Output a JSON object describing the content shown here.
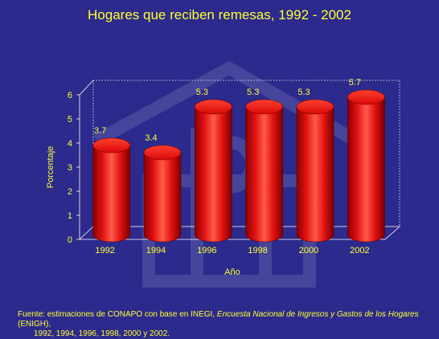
{
  "colors": {
    "background": "#2c2a8c",
    "text": "#ffff33",
    "bar": "#e81010",
    "axis": "#ffffff",
    "watermark": "#4f4fa0"
  },
  "chart_data": {
    "type": "bar",
    "title": "Hogares que reciben remesas, 1992 - 2002",
    "xlabel": "Año",
    "ylabel": "Porcentaje",
    "categories": [
      "1992",
      "1994",
      "1996",
      "1998",
      "2000",
      "2002"
    ],
    "values": [
      3.7,
      3.4,
      5.3,
      5.3,
      5.3,
      5.7
    ],
    "data_labels": [
      "3.7",
      "3.4",
      "5.3",
      "5.3",
      "5.3",
      "5.7"
    ],
    "yticks": [
      "0",
      "1",
      "2",
      "3",
      "4",
      "5",
      "6"
    ],
    "ylim": [
      0,
      6
    ],
    "grid": false,
    "legend": "none",
    "style": "3d-cylinder"
  },
  "source": {
    "prefix": "Fuente: estimaciones  de CONAPO con base en INEGI, ",
    "survey": "Encuesta Nacional de Ingresos y Gastos de los Hogares",
    "suffix": " (ENIGH),",
    "line2": "1992, 1994, 1996, 1998, 2000 y 2002."
  }
}
